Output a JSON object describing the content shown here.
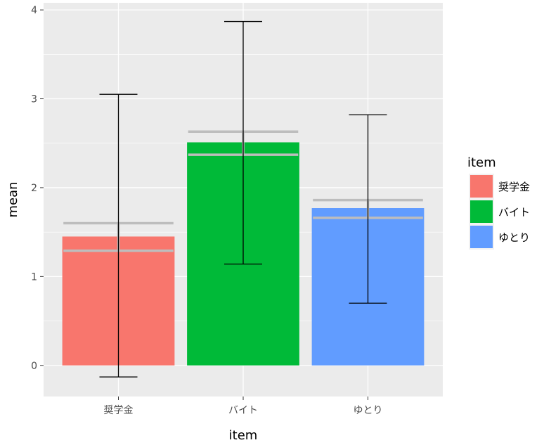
{
  "chart_data": {
    "type": "bar",
    "xlabel": "item",
    "ylabel": "mean",
    "ylim": [
      -0.35,
      4.08
    ],
    "yticks": [
      0,
      1,
      2,
      3,
      4
    ],
    "categories": [
      "奨学金",
      "バイト",
      "ゆとり"
    ],
    "values": [
      1.45,
      2.51,
      1.77
    ],
    "error_sd": [
      {
        "low": -0.13,
        "high": 3.05
      },
      {
        "low": 1.14,
        "high": 3.87
      },
      {
        "low": 0.7,
        "high": 2.82
      }
    ],
    "error_se": [
      {
        "low": 1.29,
        "high": 1.6
      },
      {
        "low": 2.37,
        "high": 2.63
      },
      {
        "low": 1.66,
        "high": 1.86
      }
    ],
    "colors": [
      "#F8766D",
      "#00BA38",
      "#619CFF"
    ],
    "grid": true,
    "legend": {
      "title": "item",
      "placement": "right",
      "entries": [
        "奨学金",
        "バイト",
        "ゆとり"
      ]
    }
  }
}
